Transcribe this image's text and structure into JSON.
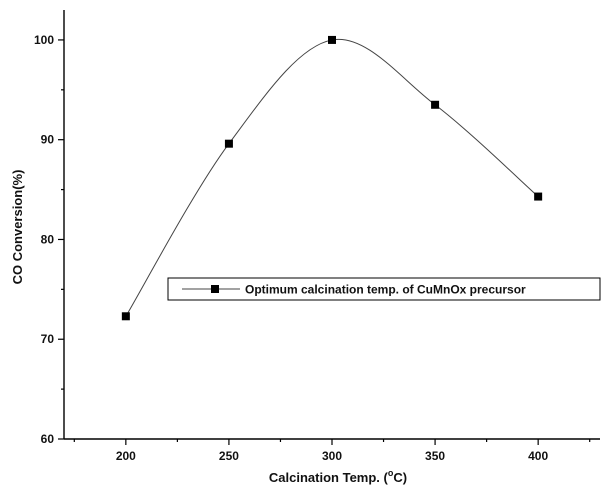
{
  "chart_data": {
    "type": "line",
    "xlabel_main": "Calcination Temp. (",
    "xlabel_sup": "o",
    "xlabel_end": "C)",
    "ylabel": "CO Conversion(%)",
    "xlim": [
      170,
      430
    ],
    "ylim": [
      60,
      103
    ],
    "x_ticks": [
      "200",
      "250",
      "300",
      "350",
      "400"
    ],
    "y_ticks": [
      "60",
      "70",
      "80",
      "90",
      "100"
    ],
    "grid": false,
    "legend_position": "center-right",
    "series": [
      {
        "name": "Optimum calcination temp. of CuMnOx precursor",
        "x": [
          200,
          250,
          300,
          350,
          400
        ],
        "y": [
          72.3,
          89.6,
          100.0,
          93.5,
          84.3
        ],
        "line_color": "#444444",
        "marker_color": "#000000"
      }
    ]
  }
}
